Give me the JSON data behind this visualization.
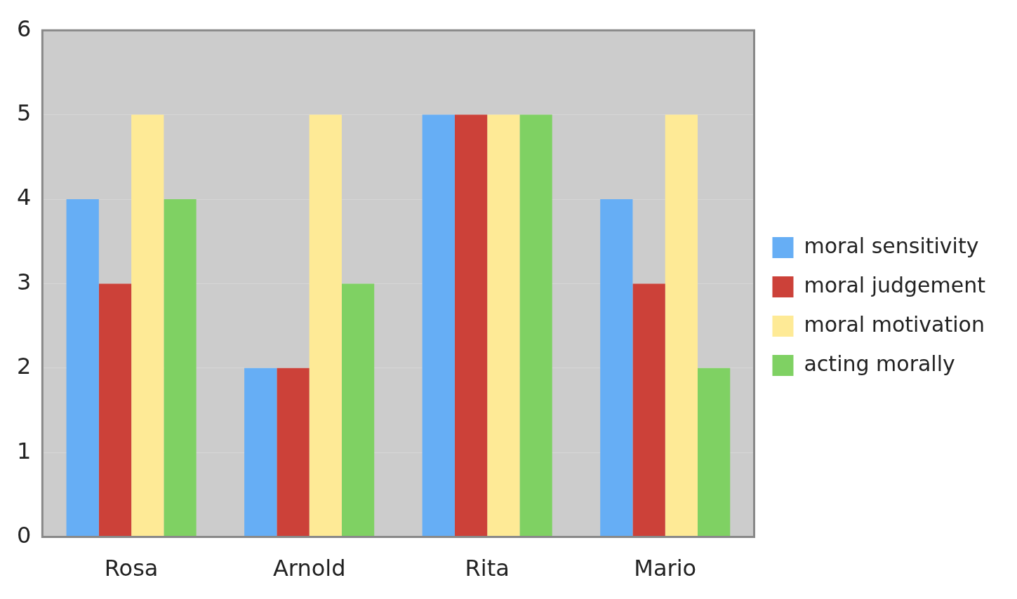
{
  "chart_data": {
    "type": "bar",
    "categories": [
      "Rosa",
      "Arnold",
      "Rita",
      "Mario"
    ],
    "series": [
      {
        "name": "moral sensitivity",
        "color": "#66aef5",
        "values": [
          4,
          2,
          5,
          4
        ]
      },
      {
        "name": "moral judgement",
        "color": "#cc4139",
        "values": [
          3,
          2,
          5,
          3
        ]
      },
      {
        "name": "moral motivation",
        "color": "#feea96",
        "values": [
          5,
          5,
          5,
          5
        ]
      },
      {
        "name": "acting morally",
        "color": "#7fd163",
        "values": [
          4,
          3,
          5,
          2
        ]
      }
    ],
    "ylim": [
      0,
      6
    ],
    "yticks": [
      0,
      1,
      2,
      3,
      4,
      5,
      6
    ],
    "grid": "y",
    "legend": "right"
  }
}
